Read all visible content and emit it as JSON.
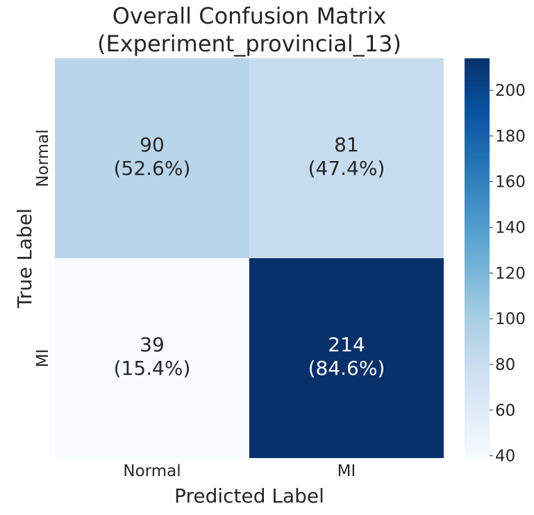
{
  "chart_data": {
    "type": "heatmap",
    "title": "Overall Confusion Matrix\n(Experiment_provincial_13)",
    "title_lines": [
      "Overall Confusion Matrix",
      "(Experiment_provincial_13)"
    ],
    "xlabel": "Predicted Label",
    "ylabel": "True Label",
    "x_categories": [
      "Normal",
      "MI"
    ],
    "y_categories": [
      "Normal",
      "MI"
    ],
    "values": [
      [
        90,
        81
      ],
      [
        39,
        214
      ]
    ],
    "cell_labels": [
      [
        [
          "90",
          "(52.6%)"
        ],
        [
          "81",
          "(47.4%)"
        ]
      ],
      [
        [
          "39",
          "(15.4%)"
        ],
        [
          "214",
          "(84.6%)"
        ]
      ]
    ],
    "colorbar": {
      "range": [
        39,
        214
      ],
      "ticks": [
        "40",
        "60",
        "80",
        "100",
        "120",
        "140",
        "160",
        "180",
        "200"
      ],
      "tick_values": [
        40,
        60,
        80,
        100,
        120,
        140,
        160,
        180,
        200
      ]
    },
    "colormap": "Blues",
    "colors": {
      "text_dark": "#262626",
      "text_light": "#ffffff",
      "low": "#f7fbff",
      "high": "#08306b"
    },
    "grid": false,
    "legend": "colorbar-right"
  }
}
